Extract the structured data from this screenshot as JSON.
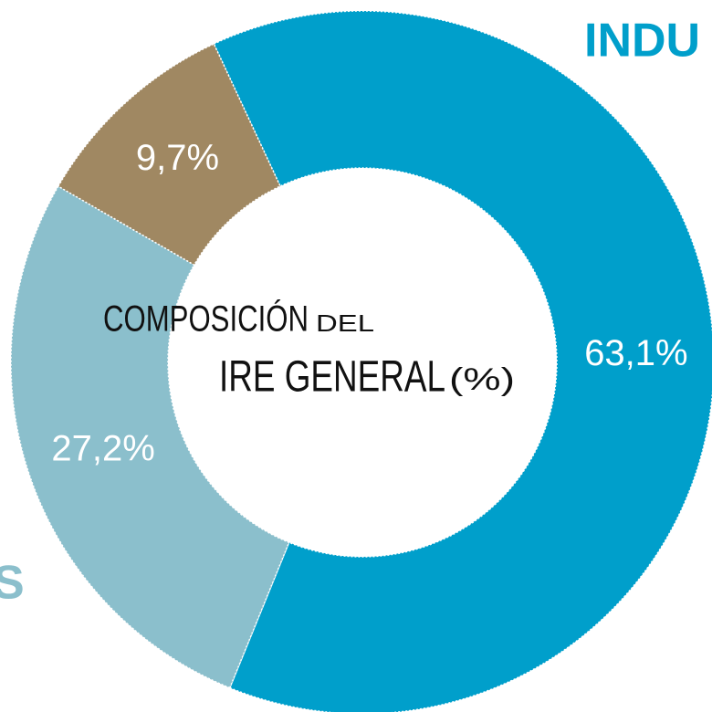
{
  "chart_data": {
    "type": "pie",
    "title": [
      "COMPOSICIÓN",
      "DEL",
      "IRE GENERAL",
      "(%)"
    ],
    "categories": [
      "INDU",
      "S",
      null
    ],
    "values": [
      63.1,
      27.2,
      9.7
    ],
    "value_labels": [
      "63,1%",
      "27,2%",
      "9,7%"
    ],
    "colors": [
      "#009fcb",
      "#8bbfcc",
      "#a08862"
    ],
    "donut": true
  }
}
